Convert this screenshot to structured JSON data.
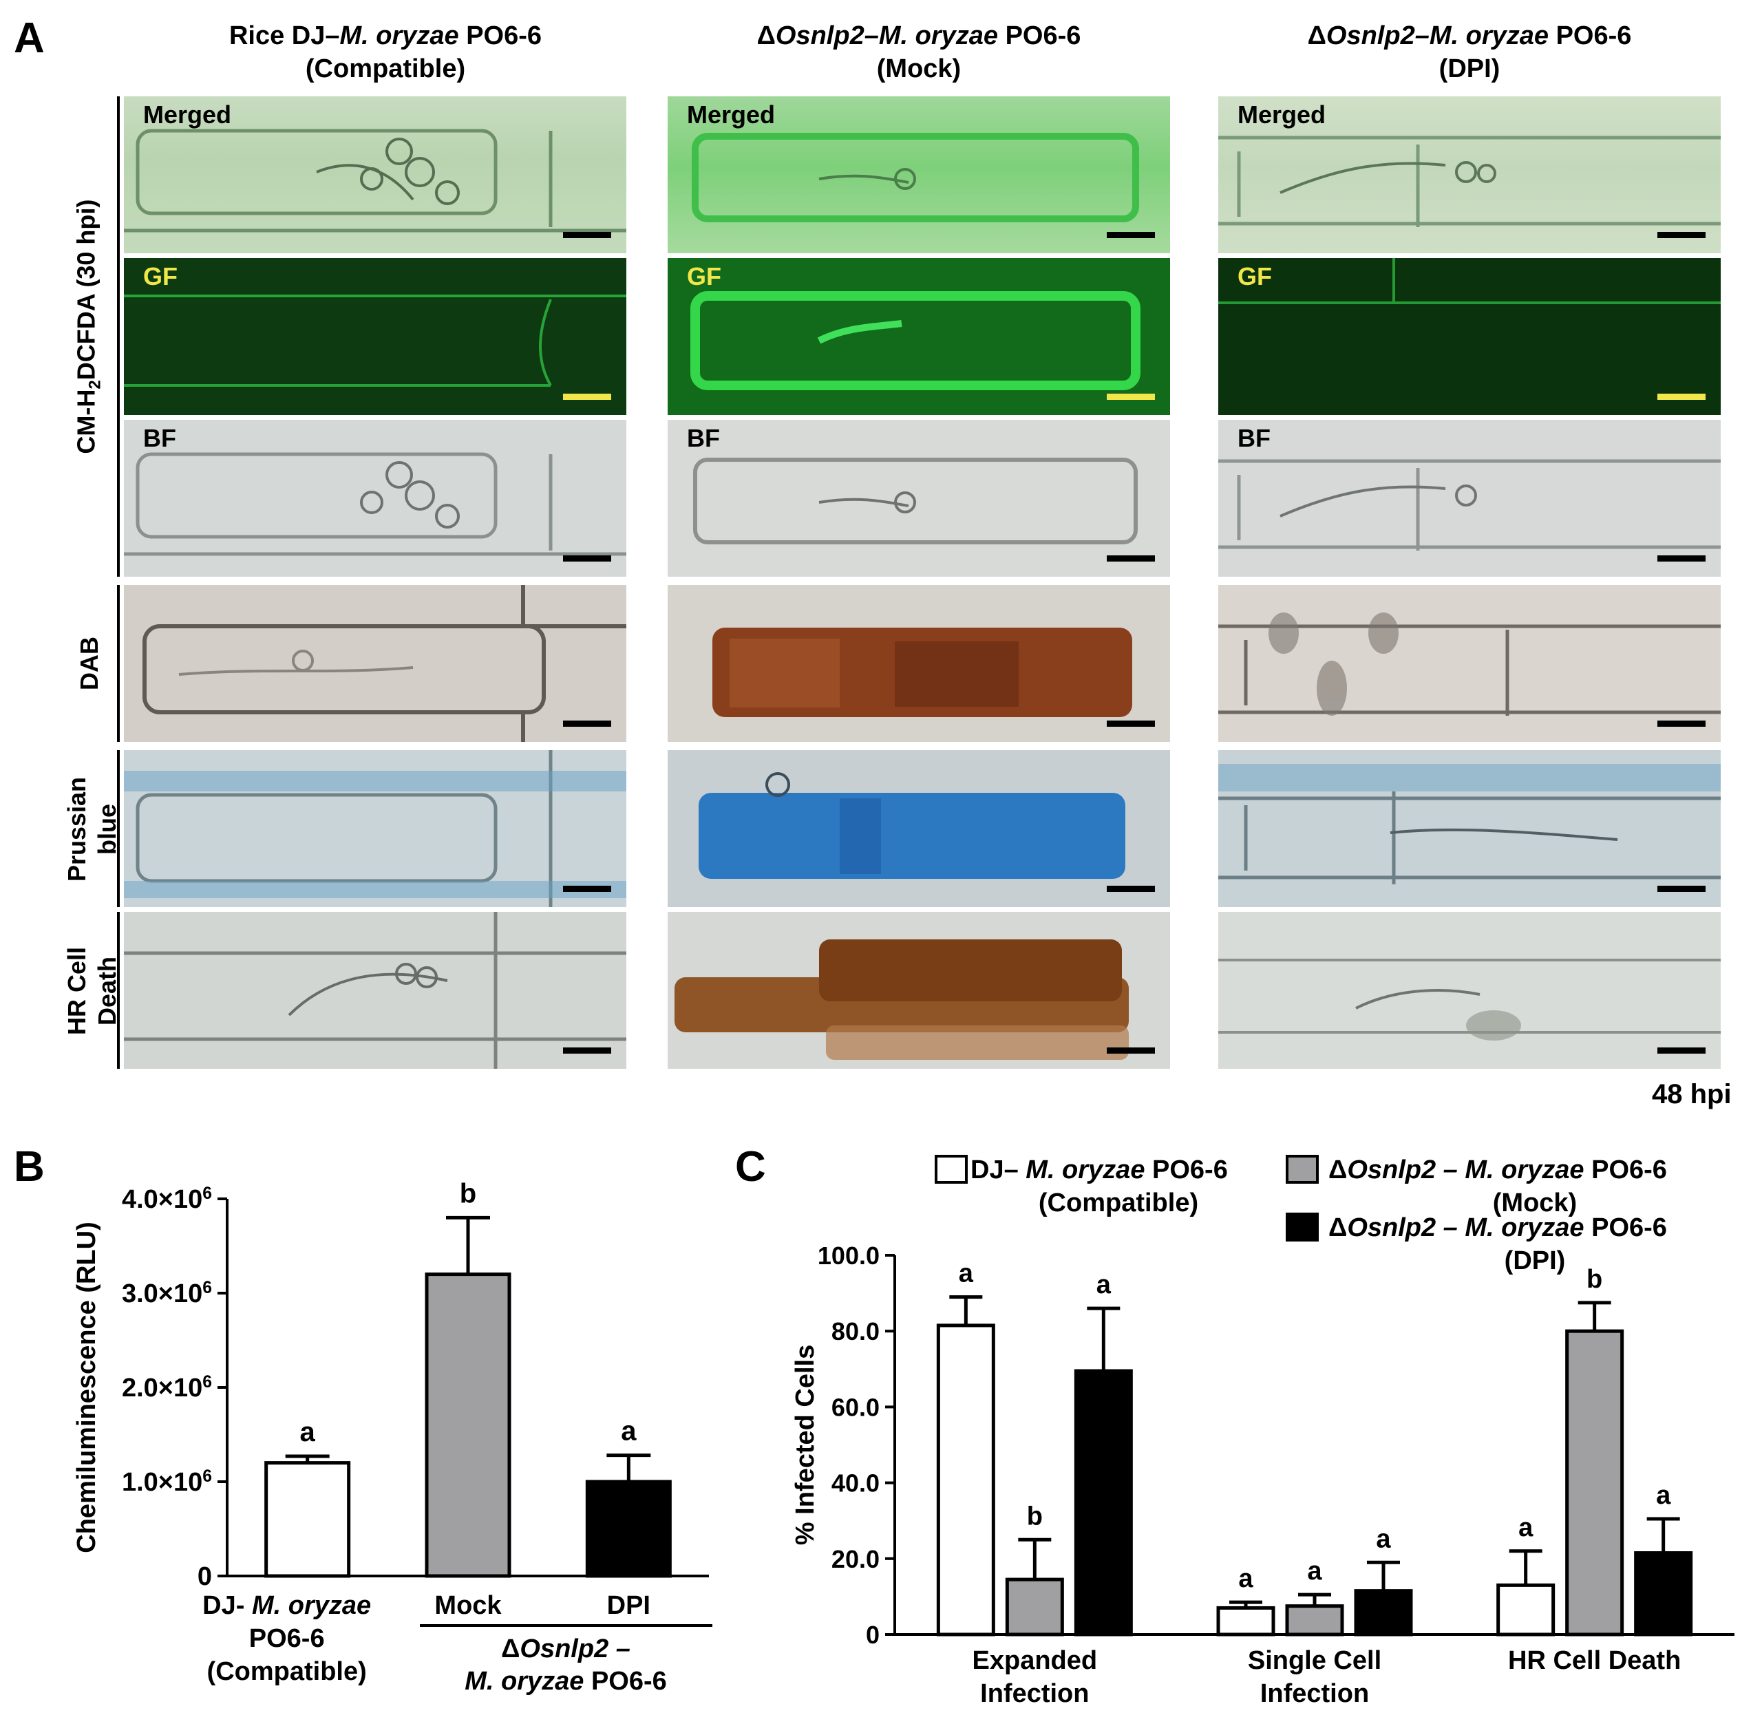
{
  "panelA": {
    "letter": "A",
    "columns": [
      {
        "title_plain": "Rice DJ–",
        "title_italic": "M. oryzae",
        "title_rest": " PO6-6",
        "subtitle": "(Compatible)"
      },
      {
        "title_plain": "Δ",
        "title_italic": "Osnlp2–M. oryzae",
        "title_rest": " PO6-6",
        "subtitle": "(Mock)"
      },
      {
        "title_plain": "Δ",
        "title_italic": "Osnlp2–M. oryzae",
        "title_rest": " PO6-6",
        "subtitle": "(DPI)"
      }
    ],
    "image_labels": {
      "merged": "Merged",
      "gf": "GF",
      "bf": "BF"
    },
    "row_labels": {
      "group": "CM-H",
      "group_sub": "2",
      "group_rest": "DCFDA (30 hpi)",
      "dab": "DAB",
      "prussian_1": "Prussian",
      "prussian_2": "blue",
      "hr_1": "HR Cell",
      "hr_2": "Death"
    },
    "timepoint": "48 hpi"
  },
  "panelB": {
    "letter": "B",
    "chart_data": {
      "type": "bar",
      "categories": [
        "DJ- M. oryzae PO6-6 (Compatible)",
        "Mock",
        "DPI"
      ],
      "values": [
        1200000,
        3200000,
        1000000
      ],
      "errors": [
        70000,
        600000,
        280000
      ],
      "letters": [
        "a",
        "b",
        "a"
      ],
      "colors": [
        "#ffffff",
        "#a0a0a3",
        "#000000"
      ],
      "ylabel": "Chemiluminescence (RLU)",
      "ylim": [
        0,
        4000000
      ],
      "yticks": [
        "0",
        "1.0×10",
        "2.0×10",
        "3.0×10",
        "4.0×10"
      ],
      "ytick_exp": "6",
      "xlabels": {
        "cat1_line1_plain": "DJ- ",
        "cat1_line1_italic": "M. oryzae",
        "cat1_line2": "PO6-6",
        "cat1_line3": "(Compatible)",
        "cat2": "Mock",
        "cat3": "DPI",
        "group_line1_plain": "Δ",
        "group_line1_italic": "Osnlp2 –",
        "group_line2_italic": "M. oryzae",
        "group_line2_rest": " PO6-6"
      }
    }
  },
  "panelC": {
    "letter": "C",
    "chart_data": {
      "type": "bar",
      "categories": [
        "Expanded Infection",
        "Single Cell Infection",
        "HR Cell Death"
      ],
      "category_lines": [
        [
          "Expanded",
          "Infection"
        ],
        [
          "Single Cell",
          "Infection"
        ],
        [
          "HR Cell Death"
        ]
      ],
      "series": [
        {
          "name": "DJ– M. oryzae PO6-6 (Compatible)",
          "color": "#ffffff",
          "values": [
            81.5,
            7.0,
            13.0
          ],
          "errors": [
            7.5,
            1.5,
            9.0
          ],
          "letters": [
            "a",
            "a",
            "a"
          ]
        },
        {
          "name": "ΔOsnlp2 – M. oryzae PO6-6 (Mock)",
          "color": "#a0a0a3",
          "values": [
            14.5,
            7.5,
            80.0
          ],
          "errors": [
            10.5,
            3.0,
            7.5
          ],
          "letters": [
            "b",
            "a",
            "b"
          ]
        },
        {
          "name": "ΔOsnlp2 – M. oryzae PO6-6 (DPI)",
          "color": "#000000",
          "values": [
            69.5,
            11.5,
            21.5
          ],
          "errors": [
            16.5,
            7.5,
            9.0
          ],
          "letters": [
            "a",
            "a",
            "a"
          ]
        }
      ],
      "ylabel": "% Infected Cells",
      "ylim": [
        0,
        100
      ],
      "yticks": [
        "0",
        "20.0",
        "40.0",
        "60.0",
        "80.0",
        "100.0"
      ],
      "legend": [
        {
          "plain": "DJ– ",
          "italic": "M. oryzae",
          "rest": " PO6-6",
          "line2": "(Compatible)"
        },
        {
          "plain": "Δ",
          "italic": "Osnlp2 – M. oryzae",
          "rest": " PO6-6",
          "line2": "(Mock)"
        },
        {
          "plain": "Δ",
          "italic": "Osnlp2 – M. oryzae",
          "rest": " PO6-6",
          "line2": "(DPI)"
        }
      ]
    }
  }
}
